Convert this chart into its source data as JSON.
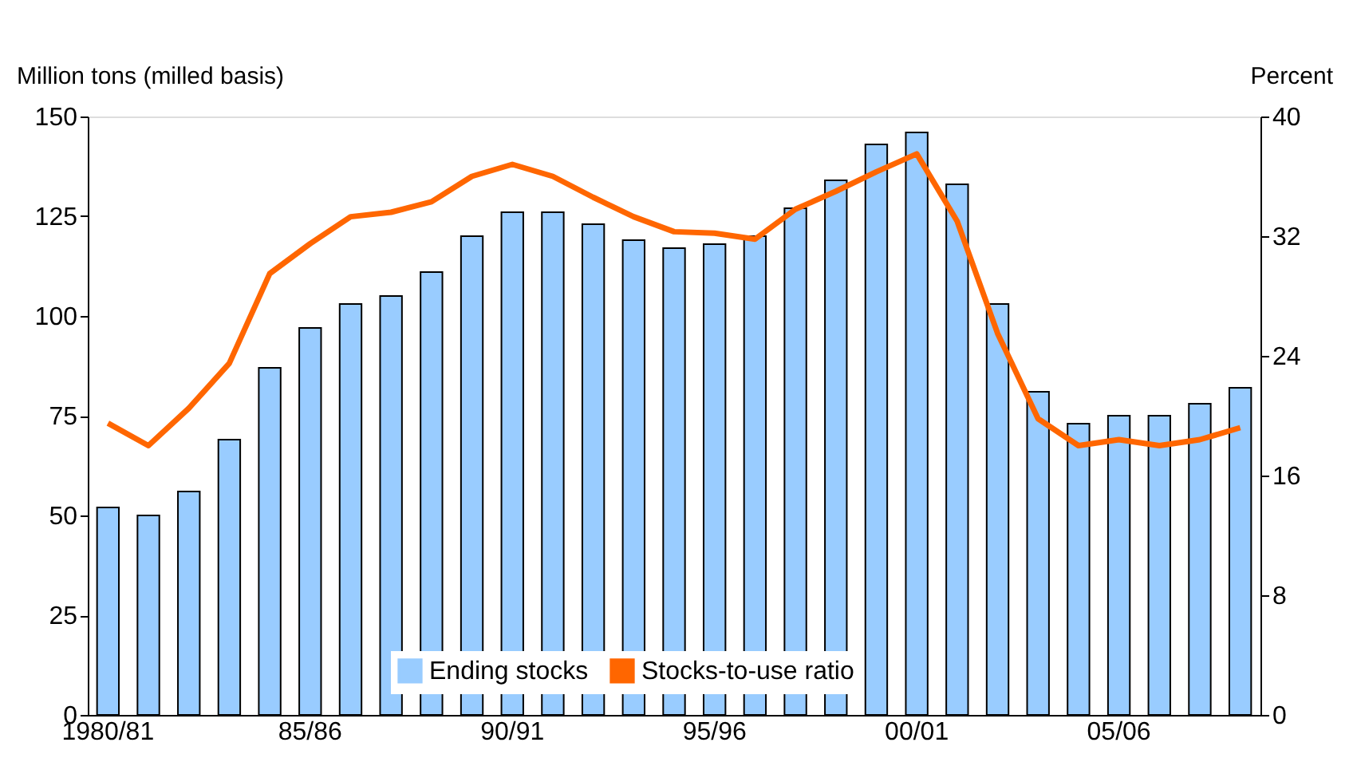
{
  "chart_data": {
    "type": "bar",
    "ylabel": "Million tons (milled basis)",
    "y2label": "Percent",
    "categories": [
      "1980/81",
      null,
      null,
      null,
      null,
      "85/86",
      null,
      null,
      null,
      null,
      "90/91",
      null,
      null,
      null,
      null,
      "95/96",
      null,
      null,
      null,
      null,
      "00/01",
      null,
      null,
      null,
      null,
      "05/06",
      null,
      null,
      null
    ],
    "series": [
      {
        "name": "Ending stocks",
        "color": "#99ccff",
        "values": [
          52,
          50,
          56,
          69,
          87,
          97,
          103,
          105,
          111,
          120,
          126,
          126,
          123,
          119,
          117,
          118,
          120,
          127,
          134,
          143,
          146,
          133,
          103,
          81,
          73,
          75,
          75,
          78,
          82
        ]
      },
      {
        "name": "Stocks-to-use ratio",
        "type": "line",
        "axis": "y2",
        "color": "#ff6600",
        "values": [
          19.5,
          18,
          20.5,
          23.5,
          29.5,
          31.5,
          33.3,
          33.6,
          34.3,
          36,
          36.8,
          36,
          34.6,
          33.3,
          32.3,
          32.2,
          31.8,
          33.8,
          35,
          36.3,
          37.5,
          33,
          25.5,
          19.8,
          18,
          18.4,
          18,
          18.4,
          19.2
        ]
      }
    ],
    "ylim": [
      0,
      150
    ],
    "yticks": [
      0,
      25,
      50,
      75,
      100,
      125,
      150
    ],
    "y2lim": [
      0,
      40
    ],
    "y2ticks": [
      0,
      8,
      16,
      24,
      32,
      40
    ],
    "grid": false,
    "legend": "bottom"
  }
}
